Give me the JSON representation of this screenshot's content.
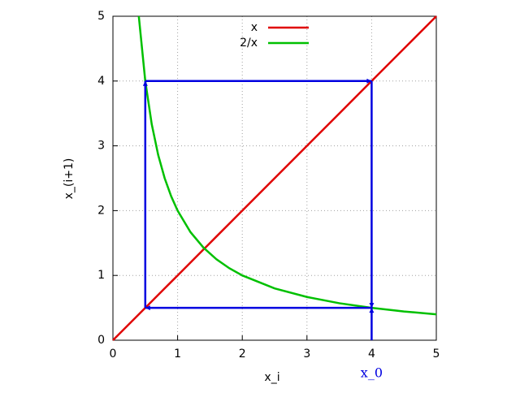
{
  "chart_data": {
    "type": "line",
    "xlabel": "x_i",
    "ylabel": "x_(i+1)",
    "x": [
      0,
      0.4,
      0.5,
      0.6,
      0.7,
      0.8,
      0.9,
      1,
      1.2,
      1.4,
      1.6,
      1.8,
      2,
      2.5,
      3,
      3.5,
      4,
      4.5,
      5
    ],
    "series": [
      {
        "name": "x",
        "color": "#e00000",
        "values": [
          0,
          0.4,
          0.5,
          0.6,
          0.7,
          0.8,
          0.9,
          1,
          1.2,
          1.4,
          1.6,
          1.8,
          2,
          2.5,
          3,
          3.5,
          4,
          4.5,
          5
        ]
      },
      {
        "name": "2/x",
        "color": "#00c000",
        "values": [
          null,
          5,
          4,
          3.333,
          2.857,
          2.5,
          2.222,
          2,
          1.667,
          1.429,
          1.25,
          1.111,
          1,
          0.8,
          0.667,
          0.571,
          0.5,
          0.444,
          0.4
        ]
      }
    ],
    "arrows": [
      [
        4,
        0,
        4,
        0.5
      ],
      [
        4,
        4,
        4,
        0.5
      ],
      [
        4,
        0.5,
        0.5,
        0.5
      ],
      [
        0.5,
        0.5,
        0.5,
        4
      ],
      [
        0.5,
        4,
        4,
        4
      ]
    ],
    "arrow_color": "#0000e0",
    "annotations": [
      {
        "text": "x_0",
        "x": 4,
        "color": "#0000e0"
      }
    ],
    "xlim": [
      0,
      5
    ],
    "ylim": [
      0,
      5
    ],
    "xticks": [
      0,
      1,
      2,
      3,
      4,
      5
    ],
    "yticks": [
      0,
      1,
      2,
      3,
      4,
      5
    ],
    "grid": true,
    "legend": "top"
  }
}
